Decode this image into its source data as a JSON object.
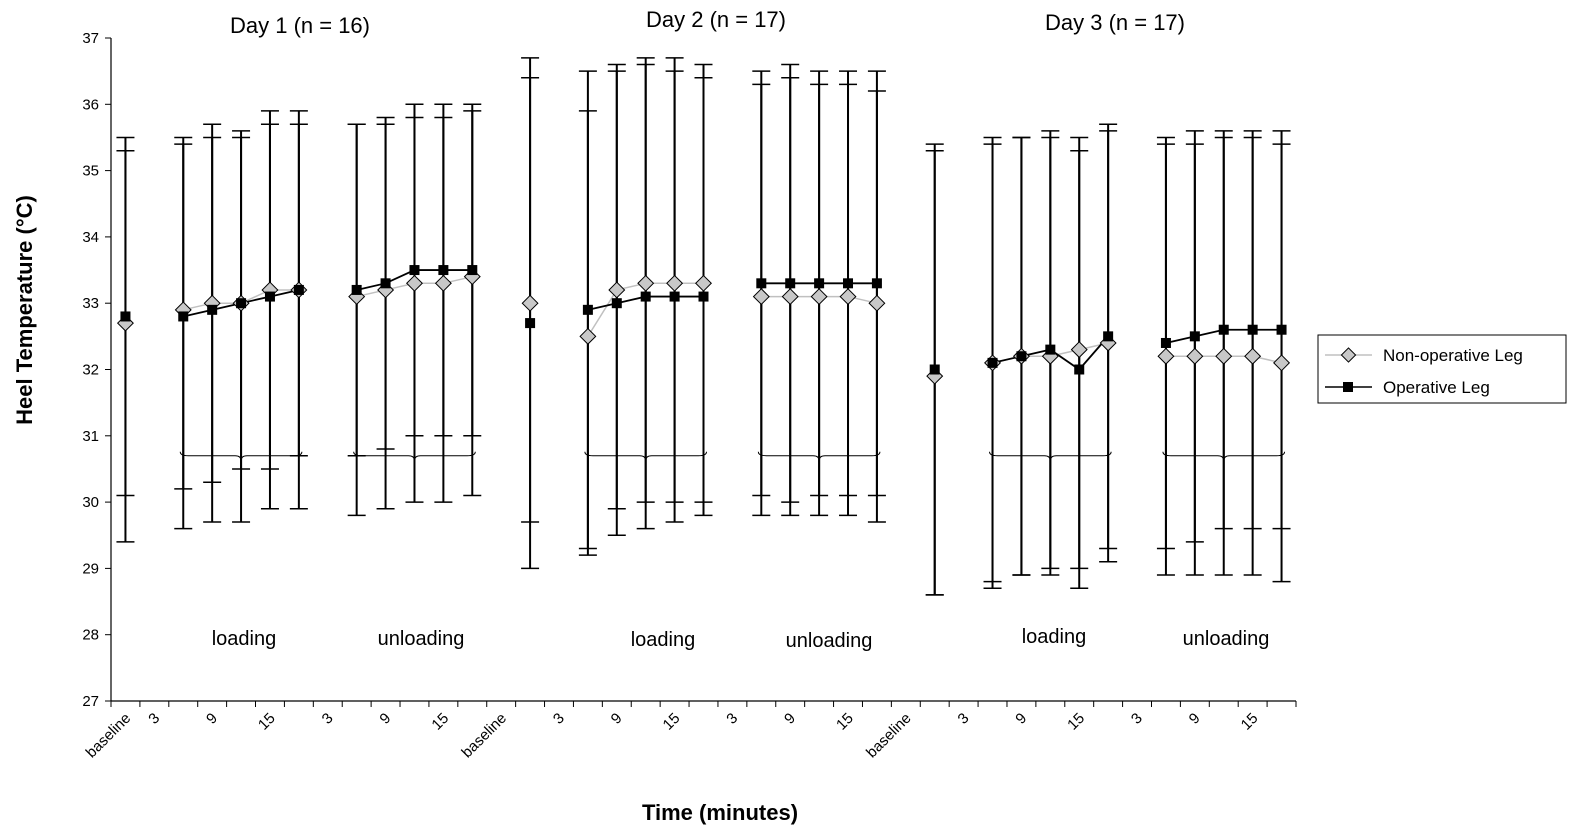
{
  "chart_data": {
    "type": "line",
    "xlabel": "Time (minutes)",
    "ylabel": "Heel Temperature (°C)",
    "ylim": [
      27,
      37
    ],
    "yticks": [
      27,
      28,
      29,
      30,
      31,
      32,
      33,
      34,
      35,
      36,
      37
    ],
    "categories": [
      "baseline",
      "3",
      "",
      "9",
      "",
      "15",
      "",
      "3",
      "",
      "9",
      "",
      "15",
      "",
      "baseline",
      "",
      "3",
      "",
      "9",
      "",
      "15",
      "",
      "3",
      "",
      "9",
      "",
      "15",
      "",
      "baseline",
      "",
      "3",
      "",
      "9",
      "",
      "15",
      "",
      "3",
      "",
      "9",
      "",
      "15",
      ""
    ],
    "panels": [
      {
        "title": "Day 1 (n = 16)",
        "phase_labels": [
          "loading",
          "unloading"
        ]
      },
      {
        "title": "Day 2 (n = 17)",
        "phase_labels": [
          "loading",
          "unloading"
        ]
      },
      {
        "title": "Day 3 (n = 17)",
        "phase_labels": [
          "loading",
          "unloading"
        ]
      }
    ],
    "series": [
      {
        "name": "Non-operative Leg",
        "marker": "diamond",
        "color": "#c0c0c0",
        "groups": [
          {
            "x": [
              0
            ],
            "y": [
              32.7
            ],
            "err_low": [
              30.1
            ],
            "err_high": [
              35.3
            ]
          },
          {
            "x": [
              2,
              3,
              4,
              5,
              6
            ],
            "y": [
              32.9,
              33.0,
              33.0,
              33.2,
              33.2
            ],
            "err_low": [
              30.2,
              30.3,
              30.5,
              30.5,
              30.7
            ],
            "err_high": [
              35.4,
              35.5,
              35.5,
              35.7,
              35.7
            ]
          },
          {
            "x": [
              8,
              9,
              10,
              11,
              12
            ],
            "y": [
              33.1,
              33.2,
              33.3,
              33.3,
              33.4
            ],
            "err_low": [
              30.7,
              30.8,
              31.0,
              31.0,
              31.0
            ],
            "err_high": [
              35.7,
              35.7,
              35.8,
              35.8,
              35.9
            ]
          },
          {
            "x": [
              14
            ],
            "y": [
              33.0
            ],
            "err_low": [
              29.7
            ],
            "err_high": [
              36.4
            ]
          },
          {
            "x": [
              16,
              17,
              18,
              19,
              20
            ],
            "y": [
              32.5,
              33.2,
              33.3,
              33.3,
              33.3
            ],
            "err_low": [
              29.3,
              29.9,
              30.0,
              30.0,
              30.0
            ],
            "err_high": [
              35.9,
              36.5,
              36.6,
              36.5,
              36.4
            ]
          },
          {
            "x": [
              22,
              23,
              24,
              25,
              26
            ],
            "y": [
              33.1,
              33.1,
              33.1,
              33.1,
              33.0
            ],
            "err_low": [
              30.1,
              30.0,
              30.1,
              30.1,
              30.1
            ],
            "err_high": [
              36.3,
              36.4,
              36.3,
              36.3,
              36.2
            ]
          },
          {
            "x": [
              28
            ],
            "y": [
              31.9
            ],
            "err_low": [
              28.6
            ],
            "err_high": [
              35.3
            ]
          },
          {
            "x": [
              30,
              31,
              32,
              33,
              34
            ],
            "y": [
              32.1,
              32.2,
              32.2,
              32.3,
              32.4
            ],
            "err_low": [
              28.8,
              28.9,
              29.0,
              29.0,
              29.3
            ],
            "err_high": [
              35.4,
              35.5,
              35.5,
              35.3,
              35.6
            ]
          },
          {
            "x": [
              36,
              37,
              38,
              39,
              40
            ],
            "y": [
              32.2,
              32.2,
              32.2,
              32.2,
              32.1
            ],
            "err_low": [
              29.3,
              29.4,
              29.6,
              29.6,
              29.6
            ],
            "err_high": [
              35.4,
              35.4,
              35.5,
              35.5,
              35.4
            ]
          }
        ]
      },
      {
        "name": "Operative Leg",
        "marker": "square",
        "color": "#000000",
        "groups": [
          {
            "x": [
              0
            ],
            "y": [
              32.8
            ],
            "err_low": [
              29.4
            ],
            "err_high": [
              35.5
            ]
          },
          {
            "x": [
              2,
              3,
              4,
              5,
              6
            ],
            "y": [
              32.8,
              32.9,
              33.0,
              33.1,
              33.2
            ],
            "err_low": [
              29.6,
              29.7,
              29.7,
              29.9,
              29.9
            ],
            "err_high": [
              35.5,
              35.7,
              35.6,
              35.9,
              35.9
            ]
          },
          {
            "x": [
              8,
              9,
              10,
              11,
              12
            ],
            "y": [
              33.2,
              33.3,
              33.5,
              33.5,
              33.5
            ],
            "err_low": [
              29.8,
              29.9,
              30.0,
              30.0,
              30.1
            ],
            "err_high": [
              35.7,
              35.8,
              36.0,
              36.0,
              36.0
            ]
          },
          {
            "x": [
              14
            ],
            "y": [
              32.7
            ],
            "err_low": [
              29.0
            ],
            "err_high": [
              36.7
            ]
          },
          {
            "x": [
              16,
              17,
              18,
              19,
              20
            ],
            "y": [
              32.9,
              33.0,
              33.1,
              33.1,
              33.1
            ],
            "err_low": [
              29.2,
              29.5,
              29.6,
              29.7,
              29.8
            ],
            "err_high": [
              36.5,
              36.6,
              36.7,
              36.7,
              36.6
            ]
          },
          {
            "x": [
              22,
              23,
              24,
              25,
              26
            ],
            "y": [
              33.3,
              33.3,
              33.3,
              33.3,
              33.3
            ],
            "err_low": [
              29.8,
              29.8,
              29.8,
              29.8,
              29.7
            ],
            "err_high": [
              36.5,
              36.6,
              36.5,
              36.5,
              36.5
            ]
          },
          {
            "x": [
              28
            ],
            "y": [
              32.0
            ],
            "err_low": [
              28.6
            ],
            "err_high": [
              35.4
            ]
          },
          {
            "x": [
              30,
              31,
              32,
              33,
              34
            ],
            "y": [
              32.1,
              32.2,
              32.3,
              32.0,
              32.5
            ],
            "err_low": [
              28.7,
              28.9,
              28.9,
              28.7,
              29.1
            ],
            "err_high": [
              35.5,
              35.5,
              35.6,
              35.5,
              35.7
            ]
          },
          {
            "x": [
              36,
              37,
              38,
              39,
              40
            ],
            "y": [
              32.4,
              32.5,
              32.6,
              32.6,
              32.6
            ],
            "err_low": [
              28.9,
              28.9,
              28.9,
              28.9,
              28.8
            ],
            "err_high": [
              35.5,
              35.6,
              35.6,
              35.6,
              35.6
            ]
          }
        ]
      }
    ],
    "braces": [
      {
        "x_from": 2,
        "x_to": 6,
        "y": 30.7
      },
      {
        "x_from": 8,
        "x_to": 12,
        "y": 30.7
      },
      {
        "x_from": 16,
        "x_to": 20,
        "y": 30.7
      },
      {
        "x_from": 22,
        "x_to": 26,
        "y": 30.7
      },
      {
        "x_from": 30,
        "x_to": 34,
        "y": 30.7
      },
      {
        "x_from": 36,
        "x_to": 40,
        "y": 30.7
      }
    ],
    "grid": false,
    "legend_position": "right"
  }
}
